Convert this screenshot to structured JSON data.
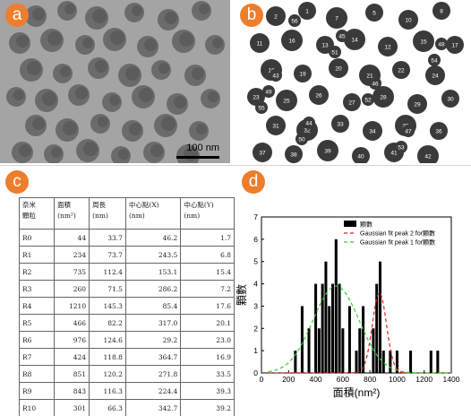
{
  "panels": {
    "a": {
      "badge": "a",
      "scale_label": "100 nm"
    },
    "b": {
      "badge": "b",
      "labels": [
        "2",
        "1",
        "7",
        "5",
        "10",
        "8",
        "11",
        "16",
        "13",
        "14",
        "12",
        "15",
        "17",
        "18",
        "19",
        "20",
        "21",
        "22",
        "24",
        "23",
        "25",
        "26",
        "27",
        "28",
        "29",
        "30",
        "31",
        "32",
        "33",
        "34",
        "35",
        "36",
        "37",
        "38",
        "39",
        "40",
        "41",
        "42",
        "43",
        "44",
        "45",
        "46",
        "47",
        "48",
        "49",
        "50",
        "51",
        "52",
        "53",
        "54",
        "55",
        "56"
      ]
    },
    "c": {
      "badge": "c"
    },
    "d": {
      "badge": "d"
    }
  },
  "table": {
    "headers": [
      [
        "奈米",
        "顆粒"
      ],
      [
        "面積",
        "(nm²)"
      ],
      [
        "周長",
        "(nm)"
      ],
      [
        "中心點(X)",
        "(nm)"
      ],
      [
        "中心點(Y)",
        "(nm)"
      ]
    ],
    "rows": [
      [
        "R0",
        "44",
        "33.7",
        "46.2",
        "1.7"
      ],
      [
        "R1",
        "234",
        "73.7",
        "243.5",
        "6.8"
      ],
      [
        "R2",
        "735",
        "112.4",
        "153.1",
        "15.4"
      ],
      [
        "R3",
        "260",
        "71.5",
        "286.2",
        "7.2"
      ],
      [
        "R4",
        "1210",
        "145.3",
        "85.4",
        "17.6"
      ],
      [
        "R5",
        "466",
        "82.2",
        "317.0",
        "20.1"
      ],
      [
        "R6",
        "976",
        "124.6",
        "29.2",
        "23.0"
      ],
      [
        "R7",
        "424",
        "118.8",
        "364.7",
        "16.9"
      ],
      [
        "R8",
        "851",
        "120.2",
        "271.8",
        "33.5"
      ],
      [
        "R9",
        "843",
        "116.3",
        "224.4",
        "39.3"
      ],
      [
        "R10",
        "301",
        "66.3",
        "342.7",
        "39.2"
      ]
    ]
  },
  "chart_data": {
    "type": "bar",
    "xlabel": "面積(nm²)",
    "ylabel": "顆數",
    "xlim": [
      0,
      1400
    ],
    "ylim": [
      0,
      7
    ],
    "xticks": [
      0,
      200,
      400,
      600,
      800,
      1000,
      1200,
      1400
    ],
    "yticks": [
      0,
      1,
      2,
      3,
      4,
      5,
      6,
      7
    ],
    "bar_width": 25,
    "bars": {
      "name": "顆數",
      "x": [
        250,
        300,
        350,
        400,
        425,
        450,
        475,
        500,
        525,
        550,
        575,
        600,
        650,
        700,
        725,
        750,
        825,
        850,
        875,
        900,
        950,
        1000,
        1100,
        1250,
        1300
      ],
      "values": [
        1,
        3,
        2,
        4,
        2,
        4,
        5,
        3,
        4,
        6,
        4,
        2,
        3,
        1,
        2,
        3,
        2,
        4,
        5,
        1,
        1,
        1,
        1,
        1,
        1
      ]
    },
    "fits": [
      {
        "name": "Gaussian fit peak 2 for顆數",
        "color": "#dd2222",
        "style": "dashed",
        "mean": 870,
        "sd": 52,
        "amp": 3.6
      },
      {
        "name": "Gaussian fit peak 1 for顆數",
        "color": "#33cc33",
        "style": "dashed",
        "mean": 550,
        "sd": 170,
        "amp": 3.9
      }
    ],
    "legend_position": "top-right"
  }
}
